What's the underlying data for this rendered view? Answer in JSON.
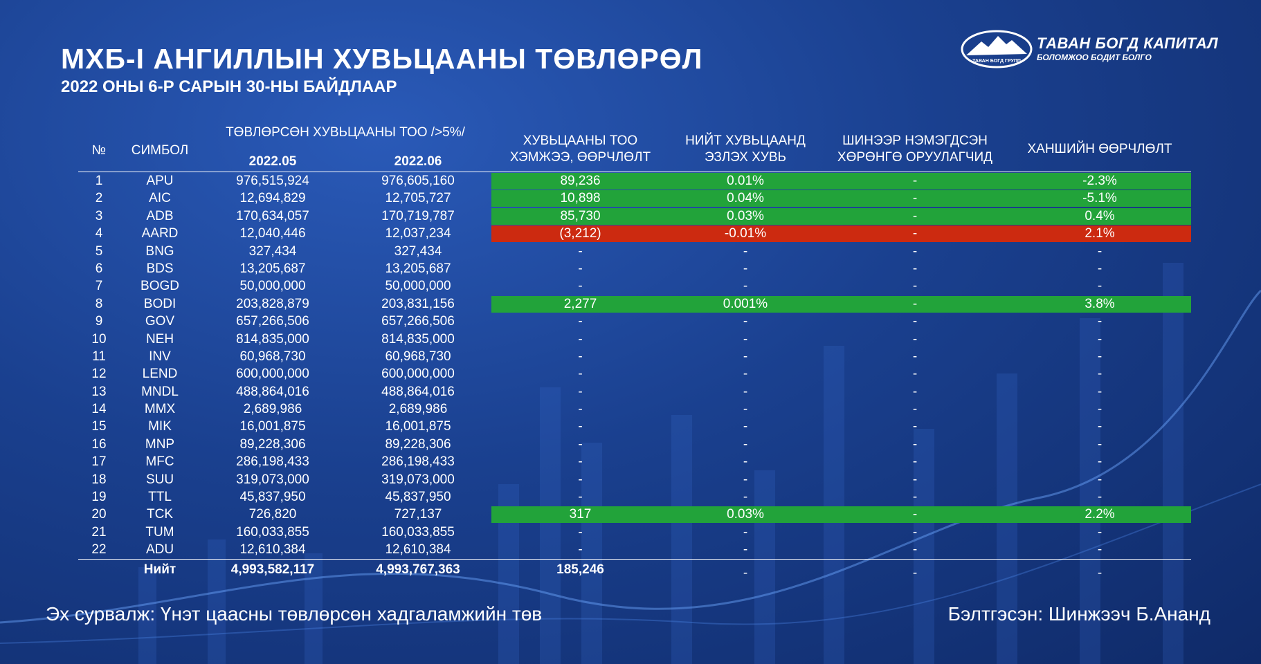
{
  "title": "МХБ-I АНГИЛЛЫН ХУВЬЦААНЫ ТӨВЛӨРӨЛ",
  "subtitle": "2022 ОНЫ 6-Р САРЫН 30-НЫ БАЙДЛААР",
  "logo": {
    "name": "ТАВАН БОГД КАПИТАЛ",
    "tagline": "БОЛОМЖОО БОДИТ БОЛГО",
    "emblem_text": "ТАВАН БОГД ГРУПП"
  },
  "table": {
    "headers": {
      "no": "№",
      "symbol": "СИМБОЛ",
      "centralized": "ТӨВЛӨРСӨН ХУВЬЦААНЫ ТОО />5%/",
      "month1": "2022.05",
      "month2": "2022.06",
      "change_line1": "ХУВЬЦААНЫ ТОО",
      "change_line2": "ХЭМЖЭЭ, ӨӨРЧЛӨЛТ",
      "share_line1": "НИЙТ ХУВЬЦААНД",
      "share_line2": "ЭЗЛЭХ ХУВЬ",
      "new_line1": "ШИНЭЭР НЭМЭГДСЭН",
      "new_line2": "ХӨРӨНГӨ ОРУУЛАГЧИД",
      "price": "ХАНШИЙН ӨӨРЧЛӨЛТ"
    },
    "rows": [
      {
        "no": "1",
        "symbol": "APU",
        "may": "976,515,924",
        "jun": "976,605,160",
        "change": "89,236",
        "share": "0.01%",
        "new": "-",
        "price": "-2.3%",
        "highlight": "green"
      },
      {
        "no": "2",
        "symbol": "AIC",
        "may": "12,694,829",
        "jun": "12,705,727",
        "change": "10,898",
        "share": "0.04%",
        "new": "-",
        "price": "-5.1%",
        "highlight": "green"
      },
      {
        "no": "3",
        "symbol": "ADB",
        "may": "170,634,057",
        "jun": "170,719,787",
        "change": "85,730",
        "share": "0.03%",
        "new": "-",
        "price": "0.4%",
        "highlight": "green"
      },
      {
        "no": "4",
        "symbol": "AARD",
        "may": "12,040,446",
        "jun": "12,037,234",
        "change": "(3,212)",
        "share": "-0.01%",
        "new": "-",
        "price": "2.1%",
        "highlight": "red"
      },
      {
        "no": "5",
        "symbol": "BNG",
        "may": "327,434",
        "jun": "327,434",
        "change": "-",
        "share": "-",
        "new": "-",
        "price": "-",
        "highlight": ""
      },
      {
        "no": "6",
        "symbol": "BDS",
        "may": "13,205,687",
        "jun": "13,205,687",
        "change": "-",
        "share": "-",
        "new": "-",
        "price": "-",
        "highlight": ""
      },
      {
        "no": "7",
        "symbol": "BOGD",
        "may": "50,000,000",
        "jun": "50,000,000",
        "change": "-",
        "share": "-",
        "new": "-",
        "price": "-",
        "highlight": ""
      },
      {
        "no": "8",
        "symbol": "BODI",
        "may": "203,828,879",
        "jun": "203,831,156",
        "change": "2,277",
        "share": "0.001%",
        "new": "-",
        "price": "3.8%",
        "highlight": "green"
      },
      {
        "no": "9",
        "symbol": "GOV",
        "may": "657,266,506",
        "jun": "657,266,506",
        "change": "-",
        "share": "-",
        "new": "-",
        "price": "-",
        "highlight": ""
      },
      {
        "no": "10",
        "symbol": "NEH",
        "may": "814,835,000",
        "jun": "814,835,000",
        "change": "-",
        "share": "-",
        "new": "-",
        "price": "-",
        "highlight": ""
      },
      {
        "no": "11",
        "symbol": "INV",
        "may": "60,968,730",
        "jun": "60,968,730",
        "change": "-",
        "share": "-",
        "new": "-",
        "price": "-",
        "highlight": ""
      },
      {
        "no": "12",
        "symbol": "LEND",
        "may": "600,000,000",
        "jun": "600,000,000",
        "change": "-",
        "share": "-",
        "new": "-",
        "price": "-",
        "highlight": ""
      },
      {
        "no": "13",
        "symbol": "MNDL",
        "may": "488,864,016",
        "jun": "488,864,016",
        "change": "-",
        "share": "-",
        "new": "-",
        "price": "-",
        "highlight": ""
      },
      {
        "no": "14",
        "symbol": "MMX",
        "may": "2,689,986",
        "jun": "2,689,986",
        "change": "-",
        "share": "-",
        "new": "-",
        "price": "-",
        "highlight": ""
      },
      {
        "no": "15",
        "symbol": "MIK",
        "may": "16,001,875",
        "jun": "16,001,875",
        "change": "-",
        "share": "-",
        "new": "-",
        "price": "-",
        "highlight": ""
      },
      {
        "no": "16",
        "symbol": "MNP",
        "may": "89,228,306",
        "jun": "89,228,306",
        "change": "-",
        "share": "-",
        "new": "-",
        "price": "-",
        "highlight": ""
      },
      {
        "no": "17",
        "symbol": "MFC",
        "may": "286,198,433",
        "jun": "286,198,433",
        "change": "-",
        "share": "-",
        "new": "-",
        "price": "-",
        "highlight": ""
      },
      {
        "no": "18",
        "symbol": "SUU",
        "may": "319,073,000",
        "jun": "319,073,000",
        "change": "-",
        "share": "-",
        "new": "-",
        "price": "-",
        "highlight": ""
      },
      {
        "no": "19",
        "symbol": "TTL",
        "may": "45,837,950",
        "jun": "45,837,950",
        "change": "-",
        "share": "-",
        "new": "-",
        "price": "-",
        "highlight": ""
      },
      {
        "no": "20",
        "symbol": "TCK",
        "may": "726,820",
        "jun": "727,137",
        "change": "317",
        "share": "0.03%",
        "new": "-",
        "price": "2.2%",
        "highlight": "green"
      },
      {
        "no": "21",
        "symbol": "TUM",
        "may": "160,033,855",
        "jun": "160,033,855",
        "change": "-",
        "share": "-",
        "new": "-",
        "price": "-",
        "highlight": ""
      },
      {
        "no": "22",
        "symbol": "ADU",
        "may": "12,610,384",
        "jun": "12,610,384",
        "change": "-",
        "share": "-",
        "new": "-",
        "price": "-",
        "highlight": ""
      }
    ],
    "total": {
      "label": "Нийт",
      "may": "4,993,582,117",
      "jun": "4,993,767,363",
      "change": "185,246",
      "share": "-",
      "new": "-",
      "price": "-"
    }
  },
  "footer": {
    "source": "Эх сурвалж: Үнэт цаасны төвлөрсөн хадгаламжийн төв",
    "author": "Бэлтгэсэн: Шинжээч Б.Ананд"
  },
  "colors": {
    "positive": "#22a33a",
    "negative": "#cc2a10",
    "background": "#1a408f"
  }
}
